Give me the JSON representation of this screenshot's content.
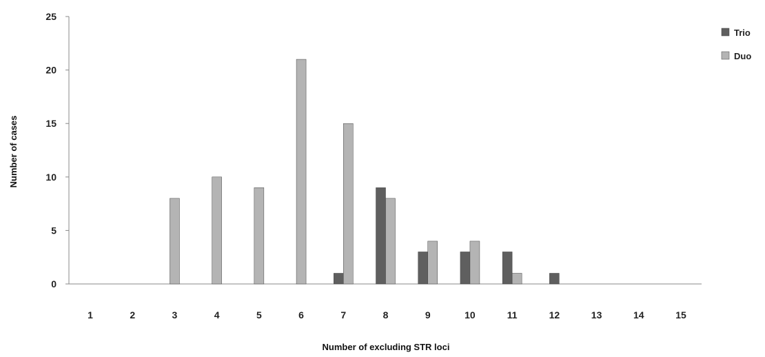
{
  "chart_data": {
    "type": "bar",
    "title": "",
    "xlabel": "Number of excluding STR loci",
    "ylabel": "Number of  cases",
    "categories": [
      "1",
      "2",
      "3",
      "4",
      "5",
      "6",
      "7",
      "8",
      "9",
      "10",
      "11",
      "12",
      "13",
      "14",
      "15"
    ],
    "series": [
      {
        "name": "Trio",
        "color": "#5f5f5f",
        "values": [
          0,
          0,
          0,
          0,
          0,
          0,
          1,
          9,
          3,
          3,
          3,
          1,
          0,
          0,
          0
        ]
      },
      {
        "name": "Duo",
        "color": "#b4b4b4",
        "values": [
          0,
          0,
          8,
          10,
          9,
          21,
          15,
          8,
          4,
          4,
          1,
          0,
          0,
          0,
          0
        ]
      }
    ],
    "ylim": [
      0,
      25
    ],
    "yticks": [
      0,
      5,
      10,
      15,
      20,
      25
    ],
    "grid": false,
    "legend_position": "top-right"
  }
}
